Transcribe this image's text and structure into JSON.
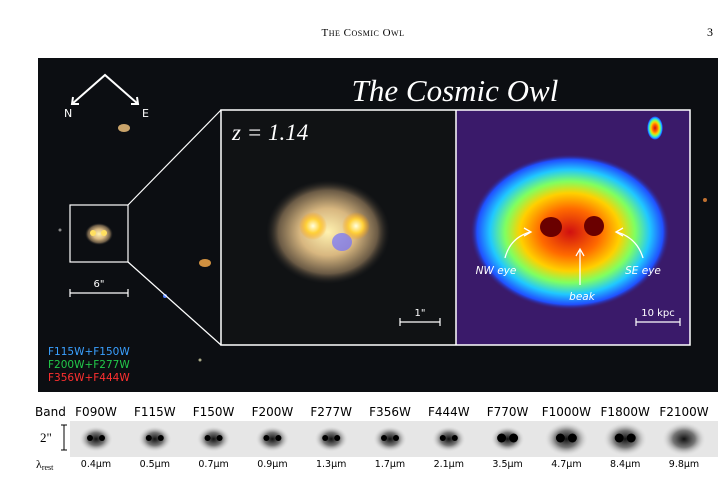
{
  "header": {
    "running_title": "The Cosmic Owl",
    "page_number": "3"
  },
  "figure": {
    "title": "The Cosmic Owl",
    "redshift": "z = 1.14",
    "compass": {
      "north": "N",
      "east": "E"
    },
    "overview_scale": "6\"",
    "zoom_scale": "1\"",
    "physical_scale": "10 kpc",
    "features": {
      "nw_eye": "NW eye",
      "beak": "beak",
      "se_eye": "SE eye"
    },
    "filters": [
      {
        "text": "F115W+F150W",
        "color": "#3aa0ff"
      },
      {
        "text": "F200W+F277W",
        "color": "#22c94a"
      },
      {
        "text": "F356W+F444W",
        "color": "#ff3030"
      }
    ],
    "bands": {
      "row_label": "Band",
      "size_label": "2\"",
      "wavelength_symbol": "λ",
      "wavelength_subscript": "rest",
      "names": [
        "F090W",
        "F115W",
        "F150W",
        "F200W",
        "F277W",
        "F356W",
        "F444W",
        "F770W",
        "F1000W",
        "F1800W",
        "F2100W"
      ],
      "wavelengths": [
        "0.4μm",
        "0.5μm",
        "0.7μm",
        "0.9μm",
        "1.3μm",
        "1.7μm",
        "2.1μm",
        "3.5μm",
        "4.7μm",
        "8.4μm",
        "9.8μm"
      ]
    }
  }
}
